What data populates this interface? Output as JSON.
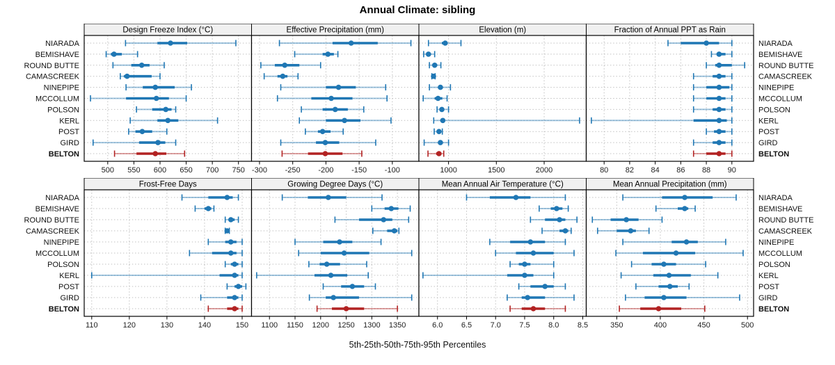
{
  "title": "Annual Climate: sibling",
  "caption": "5th-25th-50th-75th-95th Percentiles",
  "colors": {
    "series": "#1F77B4",
    "highlight": "#B22222",
    "panel_header_bg": "#F0F0F0",
    "panel_border": "#000000",
    "grid": "#C0C0C0",
    "tick_text": "#222222",
    "label_text": "#111111"
  },
  "chart_data": {
    "type": "interval",
    "layout": {
      "rows": 2,
      "cols": 4
    },
    "percentile_labels": [
      "5th",
      "25th",
      "50th",
      "75th",
      "95th"
    ],
    "sites": [
      "NIARADA",
      "BEMISHAVE",
      "ROUND BUTTE",
      "CAMASCREEK",
      "NINEPIPE",
      "MCCOLLUM",
      "POLSON",
      "KERL",
      "POST",
      "GIRD",
      "BELTON"
    ],
    "highlight_site": "BELTON",
    "panels": [
      {
        "title": "Design Freeze Index (°C)",
        "xlim": [
          455,
          775
        ],
        "ticks": [
          500,
          550,
          600,
          650,
          700,
          750
        ],
        "tick_labels": [
          "500",
          "550",
          "600",
          "650",
          "700",
          "750"
        ],
        "series": [
          [
            534,
            595,
            620,
            652,
            745
          ],
          [
            497,
            506,
            512,
            527,
            557
          ],
          [
            510,
            545,
            565,
            580,
            608
          ],
          [
            524,
            531,
            537,
            584,
            600
          ],
          [
            535,
            567,
            591,
            628,
            660
          ],
          [
            467,
            535,
            593,
            617,
            650
          ],
          [
            555,
            585,
            611,
            622,
            630
          ],
          [
            543,
            595,
            615,
            635,
            710
          ],
          [
            540,
            553,
            566,
            585,
            613
          ],
          [
            472,
            560,
            596,
            610,
            630
          ],
          [
            513,
            555,
            591,
            612,
            647
          ]
        ]
      },
      {
        "title": "Effective Precipitation (mm)",
        "xlim": [
          -312,
          -60
        ],
        "ticks": [
          -300,
          -250,
          -200,
          -150,
          -100
        ],
        "tick_labels": [
          "-300",
          "-250",
          "-200",
          "-150",
          "-100"
        ],
        "series": [
          [
            -270,
            -190,
            -162,
            -122,
            -72
          ],
          [
            -247,
            -205,
            -197,
            -188,
            -182
          ],
          [
            -298,
            -277,
            -262,
            -240,
            -208
          ],
          [
            -293,
            -273,
            -265,
            -258,
            -242
          ],
          [
            -268,
            -200,
            -181,
            -155,
            -110
          ],
          [
            -273,
            -222,
            -192,
            -160,
            -108
          ],
          [
            -237,
            -205,
            -186,
            -167,
            -143
          ],
          [
            -240,
            -200,
            -172,
            -148,
            -102
          ],
          [
            -231,
            -212,
            -205,
            -193,
            -174
          ],
          [
            -268,
            -215,
            -201,
            -180,
            -125
          ],
          [
            -266,
            -227,
            -201,
            -175,
            -146
          ]
        ]
      },
      {
        "title": "Elevation (m)",
        "xlim": [
          690,
          2440
        ],
        "ticks": [
          1000,
          1500,
          2000
        ],
        "tick_labels": [
          "1000",
          "1500",
          "2000"
        ],
        "series": [
          [
            790,
            930,
            965,
            990,
            1130
          ],
          [
            740,
            775,
            790,
            815,
            855
          ],
          [
            800,
            835,
            855,
            880,
            920
          ],
          [
            825,
            835,
            843,
            850,
            860
          ],
          [
            800,
            895,
            915,
            940,
            1020
          ],
          [
            735,
            855,
            890,
            935,
            985
          ],
          [
            880,
            915,
            930,
            950,
            1000
          ],
          [
            845,
            915,
            940,
            960,
            2370
          ],
          [
            850,
            880,
            900,
            920,
            935
          ],
          [
            745,
            890,
            915,
            940,
            1000
          ],
          [
            785,
            870,
            900,
            925,
            950
          ]
        ]
      },
      {
        "title": "Fraction of Annual PPT as Rain",
        "xlim": [
          78.6,
          91.7
        ],
        "ticks": [
          80,
          82,
          84,
          86,
          88,
          90
        ],
        "tick_labels": [
          "80",
          "82",
          "84",
          "86",
          "88",
          "90"
        ],
        "series": [
          [
            85,
            86,
            88,
            89,
            90
          ],
          [
            88.4,
            88.8,
            89,
            89.5,
            90
          ],
          [
            88,
            88.7,
            89,
            90,
            91
          ],
          [
            87,
            88.5,
            89,
            89.5,
            90
          ],
          [
            87,
            88,
            89,
            89.8,
            90
          ],
          [
            87,
            88,
            89,
            89.5,
            90
          ],
          [
            87,
            88.5,
            89,
            89.5,
            90
          ],
          [
            79,
            87,
            89,
            89.6,
            90
          ],
          [
            88,
            88.6,
            89,
            89.5,
            90
          ],
          [
            87,
            88.5,
            89,
            89.5,
            90
          ],
          [
            87,
            88,
            89,
            89.5,
            90
          ]
        ]
      },
      {
        "title": "Frost-Free Days",
        "xlim": [
          108,
          152.5
        ],
        "ticks": [
          110,
          120,
          130,
          140,
          150
        ],
        "tick_labels": [
          "110",
          "120",
          "130",
          "140",
          "150"
        ],
        "series": [
          [
            134,
            141,
            146,
            147.5,
            149
          ],
          [
            137.5,
            140,
            141,
            141.8,
            142.5
          ],
          [
            145.5,
            146.5,
            147,
            148,
            149
          ],
          [
            145.5,
            145.8,
            146,
            146.3,
            146.6
          ],
          [
            141,
            145.5,
            147,
            148.5,
            150
          ],
          [
            136,
            142,
            147,
            148.5,
            150
          ],
          [
            145.5,
            147,
            148,
            149,
            150
          ],
          [
            110,
            144,
            148,
            149,
            150
          ],
          [
            146,
            148,
            149,
            150,
            151
          ],
          [
            139,
            146,
            148,
            149,
            150
          ],
          [
            141,
            146,
            148,
            149,
            150
          ]
        ]
      },
      {
        "title": "Growing Degree Days (°C)",
        "xlim": [
          1065,
          1392
        ],
        "ticks": [
          1100,
          1150,
          1200,
          1250,
          1300,
          1350
        ],
        "tick_labels": [
          "1100",
          "1150",
          "1200",
          "1250",
          "1300",
          "1350"
        ],
        "series": [
          [
            1125,
            1175,
            1215,
            1250,
            1320
          ],
          [
            1300,
            1325,
            1338,
            1352,
            1375
          ],
          [
            1228,
            1275,
            1323,
            1340,
            1372
          ],
          [
            1302,
            1330,
            1344,
            1350,
            1353
          ],
          [
            1150,
            1205,
            1237,
            1262,
            1318
          ],
          [
            1157,
            1200,
            1246,
            1295,
            1378
          ],
          [
            1177,
            1198,
            1212,
            1238,
            1290
          ],
          [
            1075,
            1188,
            1220,
            1252,
            1293
          ],
          [
            1205,
            1240,
            1262,
            1285,
            1307
          ],
          [
            1178,
            1210,
            1225,
            1275,
            1378
          ],
          [
            1193,
            1222,
            1250,
            1285,
            1350
          ]
        ]
      },
      {
        "title": "Mean Annual Air Temperature (°C)",
        "xlim": [
          5.68,
          8.56
        ],
        "ticks": [
          6.0,
          6.5,
          7.0,
          7.5,
          8.0,
          8.5
        ],
        "tick_labels": [
          "6.0",
          "6.5",
          "7.0",
          "7.5",
          "8.0",
          "8.5"
        ],
        "series": [
          [
            6.5,
            6.9,
            7.35,
            7.6,
            8.2
          ],
          [
            7.75,
            7.95,
            8.05,
            8.15,
            8.25
          ],
          [
            7.6,
            7.85,
            8.1,
            8.2,
            8.4
          ],
          [
            7.8,
            8.1,
            8.2,
            8.25,
            8.3
          ],
          [
            6.9,
            7.25,
            7.6,
            7.85,
            8.2
          ],
          [
            7.0,
            7.35,
            7.65,
            8.0,
            8.35
          ],
          [
            7.25,
            7.4,
            7.5,
            7.6,
            8.0
          ],
          [
            5.75,
            7.2,
            7.5,
            7.65,
            8.0
          ],
          [
            7.4,
            7.6,
            7.85,
            8.0,
            8.2
          ],
          [
            7.2,
            7.45,
            7.55,
            7.85,
            8.35
          ],
          [
            7.25,
            7.45,
            7.65,
            7.85,
            8.2
          ]
        ]
      },
      {
        "title": "Mean Annual Precipitation (mm)",
        "xlim": [
          315,
          507
        ],
        "ticks": [
          350,
          400,
          450,
          500
        ],
        "tick_labels": [
          "350",
          "400",
          "450",
          "500"
        ],
        "series": [
          [
            357,
            402,
            428,
            460,
            487
          ],
          [
            395,
            420,
            428,
            432,
            440
          ],
          [
            322,
            343,
            361,
            375,
            402
          ],
          [
            328,
            350,
            366,
            372,
            387
          ],
          [
            357,
            413,
            430,
            443,
            475
          ],
          [
            349,
            380,
            418,
            440,
            495
          ],
          [
            367,
            390,
            404,
            418,
            452
          ],
          [
            355,
            392,
            410,
            435,
            466
          ],
          [
            372,
            398,
            411,
            420,
            433
          ],
          [
            360,
            382,
            404,
            430,
            491
          ],
          [
            353,
            377,
            398,
            424,
            451
          ]
        ]
      }
    ]
  }
}
